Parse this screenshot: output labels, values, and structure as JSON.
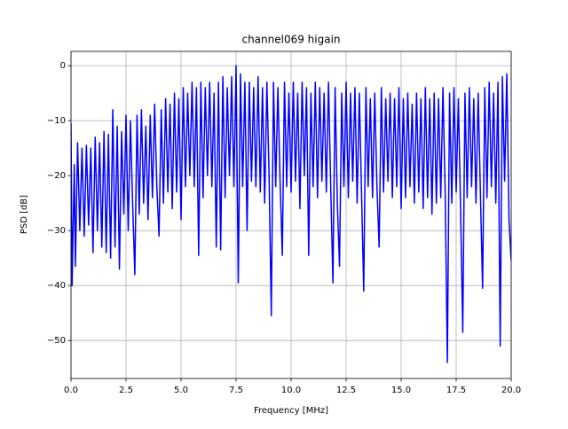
{
  "chart_data": {
    "type": "line",
    "title": "channel069 higain",
    "xlabel": "Frequency [MHz]",
    "ylabel": "PSD [dB]",
    "color": "#0000ff",
    "grid": true,
    "xlim": [
      0,
      20
    ],
    "ylim": [
      -56.9,
      2.6
    ],
    "xticks": [
      {
        "value": 0,
        "label": "0.0"
      },
      2.5,
      {
        "value": 5,
        "label": "5.0"
      },
      7.5,
      {
        "value": 10,
        "label": "10.0"
      },
      12.5,
      {
        "value": 15,
        "label": "15.0"
      },
      17.5,
      {
        "value": 20,
        "label": "20.0"
      }
    ],
    "yticks": [
      {
        "value": -50,
        "label": "−50"
      },
      {
        "value": -40,
        "label": "−40"
      },
      {
        "value": -30,
        "label": "−30"
      },
      {
        "value": -20,
        "label": "−20"
      },
      {
        "value": -10,
        "label": "−10"
      },
      0
    ],
    "x": [
      0,
      0.05,
      0.15,
      0.2,
      0.3,
      0.4,
      0.5,
      0.6,
      0.7,
      0.8,
      0.9,
      1.0,
      1.1,
      1.2,
      1.3,
      1.4,
      1.5,
      1.6,
      1.7,
      1.8,
      1.9,
      2.0,
      2.1,
      2.2,
      2.3,
      2.4,
      2.5,
      2.6,
      2.7,
      2.8,
      2.9,
      3.0,
      3.1,
      3.2,
      3.3,
      3.4,
      3.5,
      3.6,
      3.7,
      3.8,
      3.9,
      4.0,
      4.1,
      4.2,
      4.3,
      4.4,
      4.5,
      4.6,
      4.7,
      4.8,
      4.9,
      5.0,
      5.1,
      5.2,
      5.3,
      5.4,
      5.5,
      5.6,
      5.7,
      5.8,
      5.9,
      6.0,
      6.1,
      6.2,
      6.3,
      6.4,
      6.5,
      6.6,
      6.7,
      6.8,
      6.9,
      7.0,
      7.1,
      7.2,
      7.3,
      7.4,
      7.5,
      7.6,
      7.7,
      7.8,
      7.9,
      8.0,
      8.1,
      8.2,
      8.3,
      8.4,
      8.5,
      8.6,
      8.7,
      8.8,
      8.9,
      9.0,
      9.1,
      9.2,
      9.3,
      9.4,
      9.5,
      9.6,
      9.7,
      9.8,
      9.9,
      10.0,
      10.1,
      10.2,
      10.3,
      10.4,
      10.5,
      10.6,
      10.7,
      10.8,
      10.9,
      11.0,
      11.1,
      11.2,
      11.3,
      11.4,
      11.5,
      11.6,
      11.7,
      11.8,
      11.9,
      12.0,
      12.1,
      12.2,
      12.3,
      12.4,
      12.5,
      12.6,
      12.7,
      12.8,
      12.9,
      13.0,
      13.1,
      13.2,
      13.3,
      13.4,
      13.5,
      13.6,
      13.7,
      13.8,
      13.9,
      14.0,
      14.1,
      14.2,
      14.3,
      14.4,
      14.5,
      14.6,
      14.7,
      14.8,
      14.9,
      15.0,
      15.1,
      15.2,
      15.3,
      15.4,
      15.5,
      15.6,
      15.7,
      15.8,
      15.9,
      16.0,
      16.1,
      16.2,
      16.3,
      16.4,
      16.5,
      16.6,
      16.7,
      16.8,
      16.9,
      17.0,
      17.1,
      17.2,
      17.3,
      17.4,
      17.5,
      17.6,
      17.7,
      17.8,
      17.9,
      18.0,
      18.1,
      18.2,
      18.3,
      18.4,
      18.5,
      18.6,
      18.7,
      18.8,
      18.9,
      19.0,
      19.1,
      19.2,
      19.3,
      19.4,
      19.5,
      19.6,
      19.7,
      19.8,
      19.9,
      20.0
    ],
    "values": [
      -10.5,
      -40,
      -18,
      -36.5,
      -14,
      -30,
      -15,
      -31,
      -14.5,
      -29,
      -15,
      -34,
      -13,
      -30,
      -14,
      -33,
      -12,
      -34,
      -12.5,
      -35,
      -8,
      -33,
      -11,
      -37,
      -12,
      -27,
      -9,
      -30,
      -10,
      -25,
      -38,
      -9,
      -27,
      -8,
      -25,
      -11,
      -28,
      -9,
      -24,
      -7,
      -22,
      -31,
      -8,
      -25,
      -6,
      -23,
      -7,
      -26,
      -5,
      -23,
      -6,
      -28,
      -4,
      -22,
      -5,
      -20,
      -3,
      -22,
      -4,
      -34.5,
      -3,
      -24,
      -4,
      -20,
      -3,
      -22,
      -5,
      -33,
      -3,
      -33.5,
      -2,
      -24,
      -4,
      -20,
      -2,
      -22,
      0,
      -39.5,
      -1.5,
      -22,
      -3,
      -30,
      -3,
      -21,
      -4,
      -22,
      -2,
      -23,
      -4,
      -25,
      -3,
      -20,
      -45.5,
      -3,
      -22,
      -4,
      -21,
      -34.5,
      -3,
      -22,
      -5,
      -23,
      -3,
      -21,
      -5,
      -26,
      -3,
      -20,
      -4,
      -34.5,
      -5,
      -22,
      -3,
      -24,
      -4,
      -21,
      -5,
      -23,
      -3,
      -22,
      -39.5,
      -4,
      -25,
      -36.5,
      -5,
      -22,
      -3,
      -24,
      -5,
      -21,
      -4,
      -25,
      -5,
      -23,
      -41,
      -4,
      -22,
      -6,
      -24,
      -5,
      -22,
      -33,
      -4,
      -23,
      -6,
      -21,
      -5,
      -24,
      -6,
      -22,
      -4,
      -26,
      -6,
      -24,
      -5,
      -22,
      -7,
      -25,
      -5,
      -23,
      -6,
      -26,
      -4,
      -24,
      -6,
      -27,
      -5,
      -25,
      -6,
      -24,
      -4,
      -23,
      -54,
      -5,
      -25,
      -4,
      -23,
      -6,
      -26,
      -48.5,
      -5,
      -24,
      -4,
      -22,
      -6,
      -25,
      -5,
      -23,
      -40.5,
      -4,
      -24,
      -3,
      -22,
      -5,
      -25,
      -3,
      -51,
      -2,
      -21,
      -1.5,
      -28,
      -35.5
    ]
  }
}
